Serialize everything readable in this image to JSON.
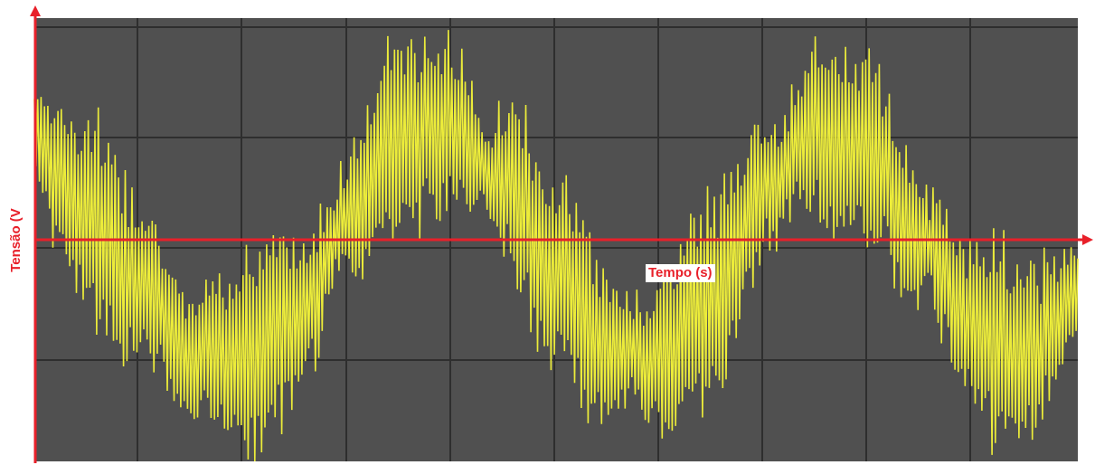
{
  "chart_data": {
    "type": "line",
    "title": "",
    "xlabel": "Tempo (s)",
    "ylabel": "Tensão (V",
    "grid": true,
    "background_color": "#505050",
    "grid_color": "#2e2e2e",
    "axis_color": "#e8202a",
    "trace_color": "#ecec3a",
    "xlim": [
      0,
      10
    ],
    "ylim": [
      -4,
      4
    ],
    "series": [
      {
        "x": [
          0.0,
          0.5,
          1.0,
          1.5,
          2.0,
          2.5,
          3.0,
          3.5,
          4.0,
          4.5,
          5.0,
          5.5,
          6.0,
          6.5,
          7.0,
          7.5,
          8.0,
          8.5,
          9.0,
          9.5,
          10.0
        ],
        "values": [
          1.8,
          0.5,
          -0.8,
          -2.0,
          -2.2,
          -1.5,
          0.4,
          1.9,
          2.0,
          1.0,
          -0.6,
          -2.0,
          -2.2,
          -1.0,
          0.9,
          2.0,
          1.6,
          0.0,
          -1.6,
          -2.1,
          -1.0
        ]
      }
    ]
  }
}
